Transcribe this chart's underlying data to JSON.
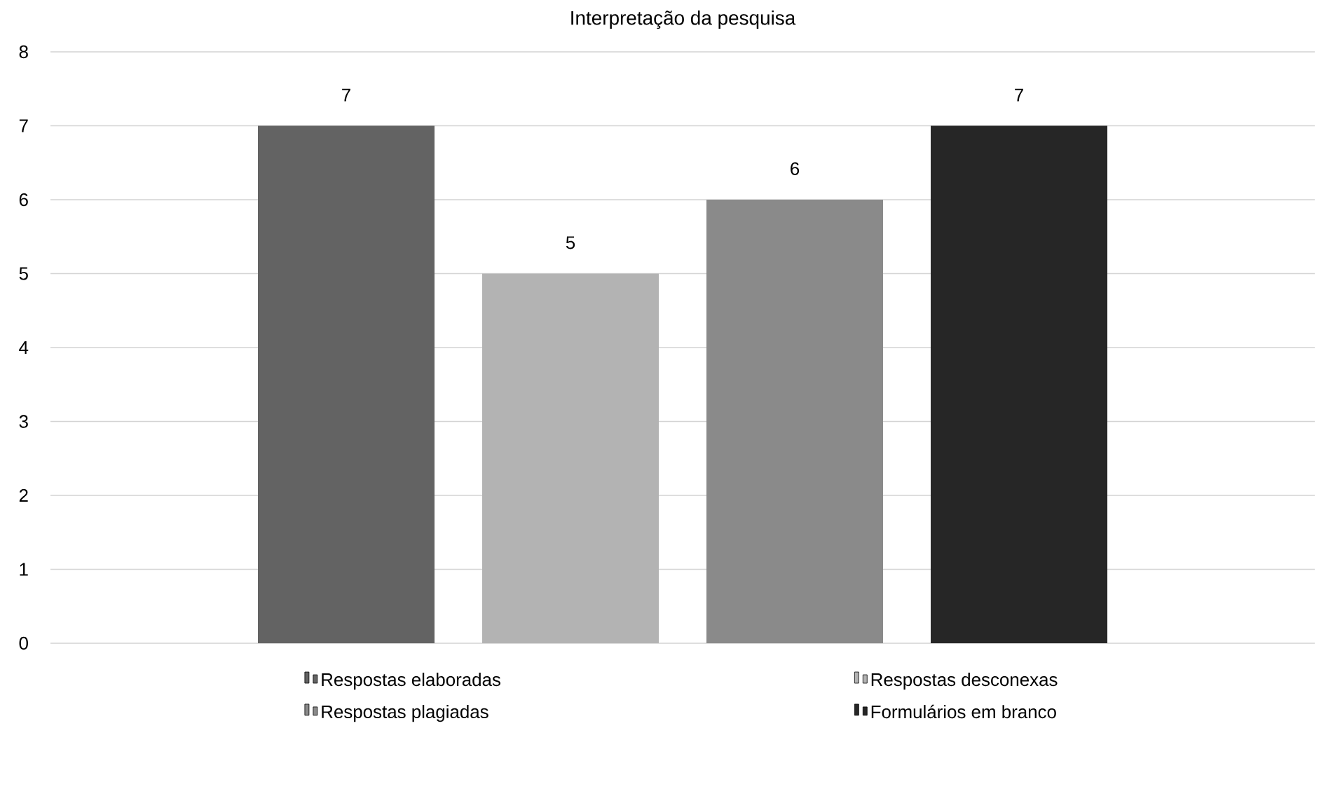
{
  "chart_data": {
    "type": "bar",
    "title": "Interpretação da pesquisa",
    "categories": [
      null
    ],
    "series": [
      {
        "name": "Respostas elaboradas",
        "color": "#636363",
        "values": [
          7
        ]
      },
      {
        "name": "Respostas desconexas",
        "color": "#b3b3b3",
        "values": [
          5
        ]
      },
      {
        "name": "Respostas plagiadas",
        "color": "#8a8a8a",
        "values": [
          6
        ]
      },
      {
        "name": "Formulários em branco",
        "color": "#262626",
        "values": [
          7
        ]
      }
    ],
    "ylim": [
      0,
      8
    ],
    "yticks": [
      0,
      1,
      2,
      3,
      4,
      5,
      6,
      7,
      8
    ],
    "grid": "y",
    "legend": "bottom",
    "data_labels": true
  }
}
